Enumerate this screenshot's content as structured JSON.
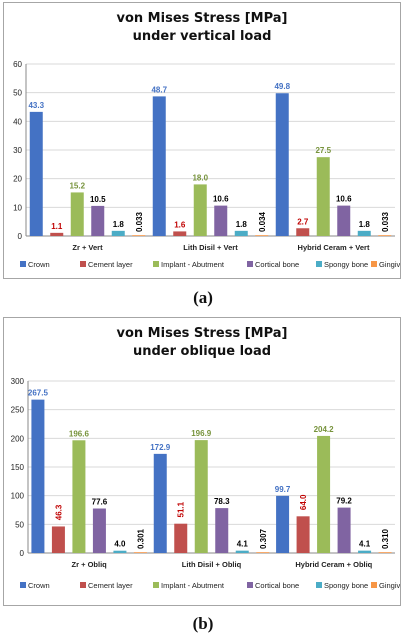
{
  "colors": {
    "crown": "#4472c4",
    "cement": "#c0504d",
    "implant": "#9bbb59",
    "cortical": "#8064a2",
    "spongy": "#4bacc6",
    "gingiva": "#f79646"
  },
  "figure_labels": [
    "(a)",
    "(b)"
  ],
  "chart_data": [
    {
      "type": "bar",
      "title": "von Mises Stress [MPa]",
      "subtitle": "under vertical load",
      "categories": [
        "Zr + Vert",
        "Lith Disil + Vert",
        "Hybrid Ceram + Vert"
      ],
      "ylim": [
        0,
        60
      ],
      "yticks": [
        0,
        10,
        20,
        30,
        40,
        50,
        60
      ],
      "grid": true,
      "legend": "bottom",
      "series": [
        {
          "name": "Crown",
          "color_key": "crown",
          "values": [
            43.3,
            48.7,
            49.8
          ],
          "labels": [
            "43.3",
            "48.7",
            "49.8"
          ]
        },
        {
          "name": "Cement layer",
          "color_key": "cement",
          "values": [
            1.1,
            1.6,
            2.7
          ],
          "labels": [
            "1.1",
            "1.6",
            "2.7"
          ]
        },
        {
          "name": "Implant - Abutment",
          "color_key": "implant",
          "values": [
            15.2,
            18.0,
            27.5
          ],
          "labels": [
            "15.2",
            "18.0",
            "27.5"
          ]
        },
        {
          "name": "Cortical bone",
          "color_key": "cortical",
          "values": [
            10.5,
            10.6,
            10.6
          ],
          "labels": [
            "10.5",
            "10.6",
            "10.6"
          ]
        },
        {
          "name": "Spongy bone",
          "color_key": "spongy",
          "values": [
            1.8,
            1.8,
            1.8
          ],
          "labels": [
            "1.8",
            "1.8",
            "1.8"
          ]
        },
        {
          "name": "Gingiva",
          "color_key": "gingiva",
          "values": [
            0.033,
            0.034,
            0.033
          ],
          "labels": [
            "0.033",
            "0.034",
            "0.033"
          ]
        }
      ]
    },
    {
      "type": "bar",
      "title": "von Mises Stress [MPa]",
      "subtitle": "under oblique load",
      "categories": [
        "Zr + Obliq",
        "Lith Disil + Obliq",
        "Hybrid Ceram + Obliq"
      ],
      "ylim": [
        0,
        300
      ],
      "yticks": [
        0,
        50,
        100,
        150,
        200,
        250,
        300
      ],
      "grid": true,
      "legend": "bottom",
      "series": [
        {
          "name": "Crown",
          "color_key": "crown",
          "values": [
            267.5,
            172.9,
            99.7
          ],
          "labels": [
            "267.5",
            "172.9",
            "99.7"
          ]
        },
        {
          "name": "Cement layer",
          "color_key": "cement",
          "values": [
            46.3,
            51.1,
            64.0
          ],
          "labels": [
            "46.3",
            "51.1",
            "64.0"
          ]
        },
        {
          "name": "Implant - Abutment",
          "color_key": "implant",
          "values": [
            196.6,
            196.9,
            204.2
          ],
          "labels": [
            "196.6",
            "196.9",
            "204.2"
          ]
        },
        {
          "name": "Cortical bone",
          "color_key": "cortical",
          "values": [
            77.6,
            78.3,
            79.2
          ],
          "labels": [
            "77.6",
            "78.3",
            "79.2"
          ]
        },
        {
          "name": "Spongy bone",
          "color_key": "spongy",
          "values": [
            4.0,
            4.1,
            4.1
          ],
          "labels": [
            "4.0",
            "4.1",
            "4.1"
          ]
        },
        {
          "name": "Gingiva",
          "color_key": "gingiva",
          "values": [
            0.301,
            0.307,
            0.31
          ],
          "labels": [
            "0.301",
            "0.307",
            "0.310"
          ]
        }
      ]
    }
  ]
}
